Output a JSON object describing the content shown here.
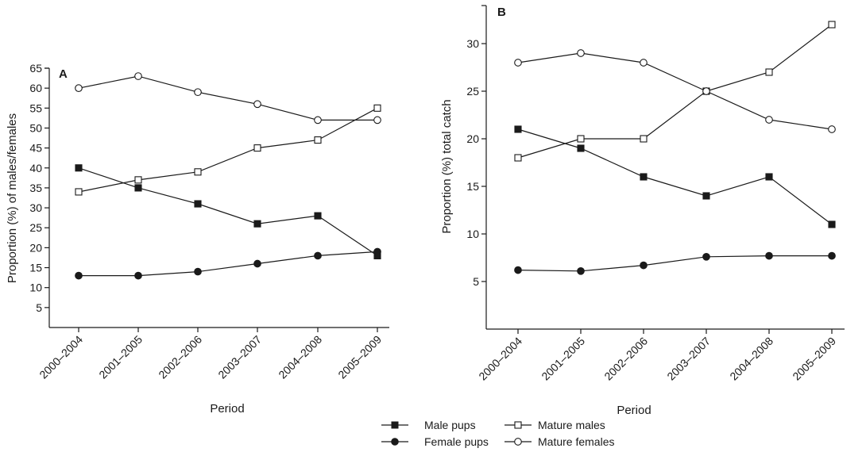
{
  "chart_data": [
    {
      "type": "line",
      "panel_label": "A",
      "title": "",
      "xlabel": "Period",
      "ylabel": "Proportion (%) of males/females",
      "categories": [
        "2000–2004",
        "2001–2005",
        "2002–2006",
        "2003–2007",
        "2004–2008",
        "2005–2009"
      ],
      "ylim": [
        0,
        65
      ],
      "yticks": [
        5,
        10,
        15,
        20,
        25,
        30,
        35,
        40,
        45,
        50,
        55,
        60,
        65
      ],
      "grid": false,
      "series": [
        {
          "name": "Male pups",
          "marker": "filled-square",
          "values": [
            40,
            35,
            31,
            26,
            28,
            18
          ]
        },
        {
          "name": "Female pups",
          "marker": "filled-circle",
          "values": [
            13,
            13,
            14,
            16,
            18,
            19
          ]
        },
        {
          "name": "Mature males",
          "marker": "open-square",
          "values": [
            34,
            37,
            39,
            45,
            47,
            55
          ]
        },
        {
          "name": "Mature females",
          "marker": "open-circle",
          "values": [
            60,
            63,
            59,
            56,
            52,
            52
          ]
        }
      ]
    },
    {
      "type": "line",
      "panel_label": "B",
      "title": "",
      "xlabel": "Period",
      "ylabel": "Proportion (%) total catch",
      "categories": [
        "2000–2004",
        "2001–2005",
        "2002–2006",
        "2003–2007",
        "2004–2008",
        "2005–2009"
      ],
      "ylim": [
        0,
        34
      ],
      "yticks": [
        5,
        10,
        15,
        20,
        25,
        30
      ],
      "grid": false,
      "series": [
        {
          "name": "Male pups",
          "marker": "filled-square",
          "values": [
            21,
            19,
            16,
            14,
            16,
            11
          ]
        },
        {
          "name": "Female pups",
          "marker": "filled-circle",
          "values": [
            6.2,
            6.1,
            6.7,
            7.6,
            7.7,
            7.7
          ]
        },
        {
          "name": "Mature males",
          "marker": "open-square",
          "values": [
            18,
            20,
            20,
            25,
            27,
            32
          ]
        },
        {
          "name": "Mature females",
          "marker": "open-circle",
          "values": [
            28,
            29,
            28,
            25,
            22,
            21
          ]
        }
      ]
    }
  ],
  "legend": {
    "position": "bottom-center",
    "items": [
      {
        "label": "Male pups",
        "marker": "filled-square"
      },
      {
        "label": "Mature males",
        "marker": "open-square"
      },
      {
        "label": "Female pups",
        "marker": "filled-circle"
      },
      {
        "label": "Mature females",
        "marker": "open-circle"
      }
    ]
  },
  "colors": {
    "ink": "#1a1a1a",
    "background": "#ffffff"
  }
}
